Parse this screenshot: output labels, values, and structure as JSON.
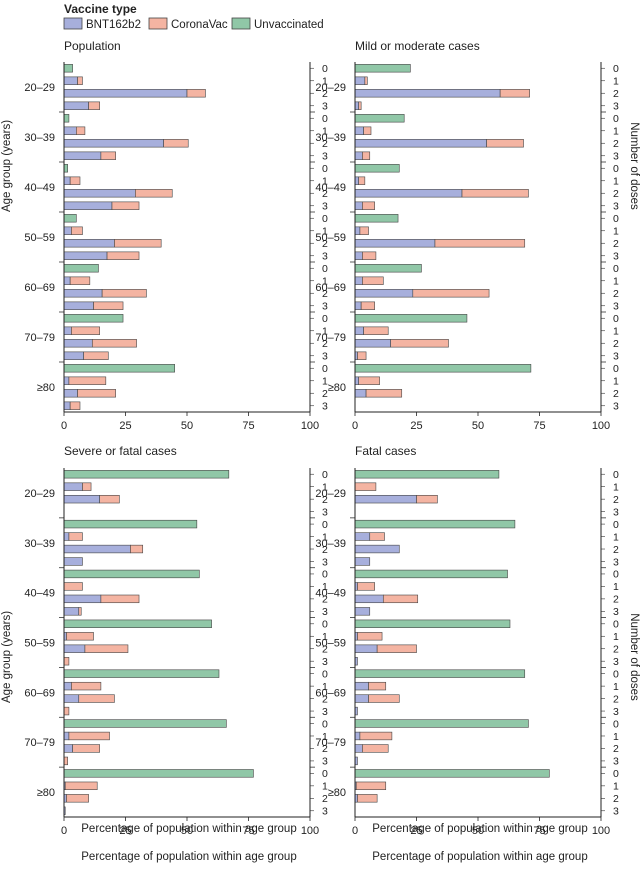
{
  "legend": {
    "title": "Vaccine type",
    "items": [
      {
        "name": "BNT162b2",
        "color": "#a7afdc"
      },
      {
        "name": "CoronaVac",
        "color": "#f4b4a2"
      },
      {
        "name": "Unvaccinated",
        "color": "#90c7a7"
      }
    ]
  },
  "y_axis_title": "Age group (years)",
  "right_axis_title": "Number of doses",
  "x_axis_title": "Percentage of population within age group",
  "x_ticks": [
    0,
    25,
    50,
    75,
    100
  ],
  "dose_labels": [
    "0",
    "1",
    "2",
    "3"
  ],
  "chart_data": [
    {
      "type": "bar",
      "title": "Population",
      "categories": [
        "20–29",
        "30–39",
        "40–49",
        "50–59",
        "60–69",
        "70–79",
        "≥80"
      ],
      "xlim": [
        0,
        100
      ],
      "series": [
        {
          "name": "Unvaccinated",
          "values": [
            [
              3.5,
              0,
              0,
              0
            ],
            [
              2,
              0,
              0,
              0
            ],
            [
              1.5,
              0,
              0,
              0
            ],
            [
              5,
              0,
              0,
              0
            ],
            [
              14,
              0,
              0,
              0
            ],
            [
              24,
              0,
              0,
              0
            ],
            [
              45,
              0,
              0,
              0
            ]
          ]
        },
        {
          "name": "BNT162b2",
          "values": [
            [
              0,
              5.5,
              50,
              10
            ],
            [
              0,
              5,
              40.5,
              15
            ],
            [
              0,
              2.5,
              29,
              19.5
            ],
            [
              0,
              3,
              20.5,
              17.5
            ],
            [
              0,
              2.5,
              15.5,
              12
            ],
            [
              0,
              3,
              11.5,
              8
            ],
            [
              0,
              2,
              5.5,
              2.5
            ]
          ]
        },
        {
          "name": "CoronaVac",
          "values": [
            [
              0,
              2,
              7.5,
              4.5
            ],
            [
              0,
              3.5,
              10,
              6
            ],
            [
              0,
              4,
              15,
              11
            ],
            [
              0,
              4.5,
              19,
              13
            ],
            [
              0,
              8,
              18,
              12
            ],
            [
              0,
              11.5,
              18,
              10
            ],
            [
              0,
              15,
              15.5,
              4
            ]
          ]
        }
      ]
    },
    {
      "type": "bar",
      "title": "Mild or moderate cases",
      "categories": [
        "20–29",
        "30–39",
        "40–49",
        "50–59",
        "60–69",
        "70–79",
        "≥80"
      ],
      "xlim": [
        0,
        100
      ],
      "series": [
        {
          "name": "Unvaccinated",
          "values": [
            [
              22.5,
              0,
              0,
              0
            ],
            [
              20,
              0,
              0,
              0
            ],
            [
              18,
              0,
              0,
              0
            ],
            [
              17.5,
              0,
              0,
              0
            ],
            [
              27,
              0,
              0,
              0
            ],
            [
              45.5,
              0,
              0,
              0
            ],
            [
              71.5,
              0,
              0,
              0
            ]
          ]
        },
        {
          "name": "BNT162b2",
          "values": [
            [
              0,
              4,
              59,
              1.5
            ],
            [
              0,
              3.5,
              53.5,
              3
            ],
            [
              0,
              1.5,
              43.5,
              3
            ],
            [
              0,
              2,
              32.5,
              3
            ],
            [
              0,
              3,
              23.5,
              2.5
            ],
            [
              0,
              3.5,
              14.5,
              1
            ],
            [
              0,
              1.5,
              4.5,
              0
            ]
          ]
        },
        {
          "name": "CoronaVac",
          "values": [
            [
              0,
              1,
              12,
              1
            ],
            [
              0,
              3,
              15,
              3
            ],
            [
              0,
              2.5,
              27,
              5
            ],
            [
              0,
              3.5,
              36.5,
              5.5
            ],
            [
              0,
              8.5,
              31,
              5.5
            ],
            [
              0,
              10,
              23.5,
              3.5
            ],
            [
              0,
              8.5,
              14.5,
              0
            ]
          ]
        }
      ]
    },
    {
      "type": "bar",
      "title": "Severe or fatal cases",
      "categories": [
        "20–29",
        "30–39",
        "40–49",
        "50–59",
        "60–69",
        "70–79",
        "≥80"
      ],
      "xlim": [
        0,
        100
      ],
      "series": [
        {
          "name": "Unvaccinated",
          "values": [
            [
              67,
              0,
              0,
              0
            ],
            [
              54,
              0,
              0,
              0
            ],
            [
              55,
              0,
              0,
              0
            ],
            [
              60,
              0,
              0,
              0
            ],
            [
              63,
              0,
              0,
              0
            ],
            [
              66,
              0,
              0,
              0
            ],
            [
              77,
              0,
              0,
              0
            ]
          ]
        },
        {
          "name": "BNT162b2",
          "values": [
            [
              0,
              7.5,
              14.5,
              0
            ],
            [
              0,
              2,
              27,
              7.5
            ],
            [
              0,
              0,
              15,
              6
            ],
            [
              0,
              1,
              8.5,
              0
            ],
            [
              0,
              3,
              6,
              0
            ],
            [
              0,
              2,
              3.5,
              0
            ],
            [
              0,
              0.5,
              1,
              0.5
            ]
          ]
        },
        {
          "name": "CoronaVac",
          "values": [
            [
              0,
              3.5,
              8,
              0
            ],
            [
              0,
              5.5,
              5,
              0
            ],
            [
              0,
              7.5,
              15.5,
              1
            ],
            [
              0,
              11,
              17.5,
              2
            ],
            [
              0,
              12,
              14.5,
              2
            ],
            [
              0,
              16.5,
              11,
              1.5
            ],
            [
              0,
              13,
              9,
              0
            ]
          ]
        }
      ]
    },
    {
      "type": "bar",
      "title": "Fatal cases",
      "categories": [
        "20–29",
        "30–39",
        "40–49",
        "50–59",
        "60–69",
        "70–79",
        "≥80"
      ],
      "xlim": [
        0,
        100
      ],
      "series": [
        {
          "name": "Unvaccinated",
          "values": [
            [
              58.5,
              0,
              0,
              0
            ],
            [
              65,
              0,
              0,
              0
            ],
            [
              62,
              0,
              0,
              0
            ],
            [
              63,
              0,
              0,
              0
            ],
            [
              69,
              0,
              0,
              0
            ],
            [
              70.5,
              0,
              0,
              0
            ],
            [
              79,
              0,
              0,
              0
            ]
          ]
        },
        {
          "name": "BNT162b2",
          "values": [
            [
              0,
              0,
              25,
              0
            ],
            [
              0,
              6,
              18,
              6
            ],
            [
              0,
              1,
              11.5,
              6
            ],
            [
              0,
              1,
              9,
              1
            ],
            [
              0,
              5.5,
              5.5,
              1
            ],
            [
              0,
              2,
              3,
              1
            ],
            [
              0,
              0.5,
              1,
              0
            ]
          ]
        },
        {
          "name": "CoronaVac",
          "values": [
            [
              0,
              8.5,
              8.5,
              0
            ],
            [
              0,
              6,
              0,
              0
            ],
            [
              0,
              7,
              14,
              0
            ],
            [
              0,
              10,
              16,
              0
            ],
            [
              0,
              7,
              12.5,
              0
            ],
            [
              0,
              13,
              10.5,
              0
            ],
            [
              0,
              12,
              8,
              0
            ]
          ]
        }
      ]
    }
  ]
}
